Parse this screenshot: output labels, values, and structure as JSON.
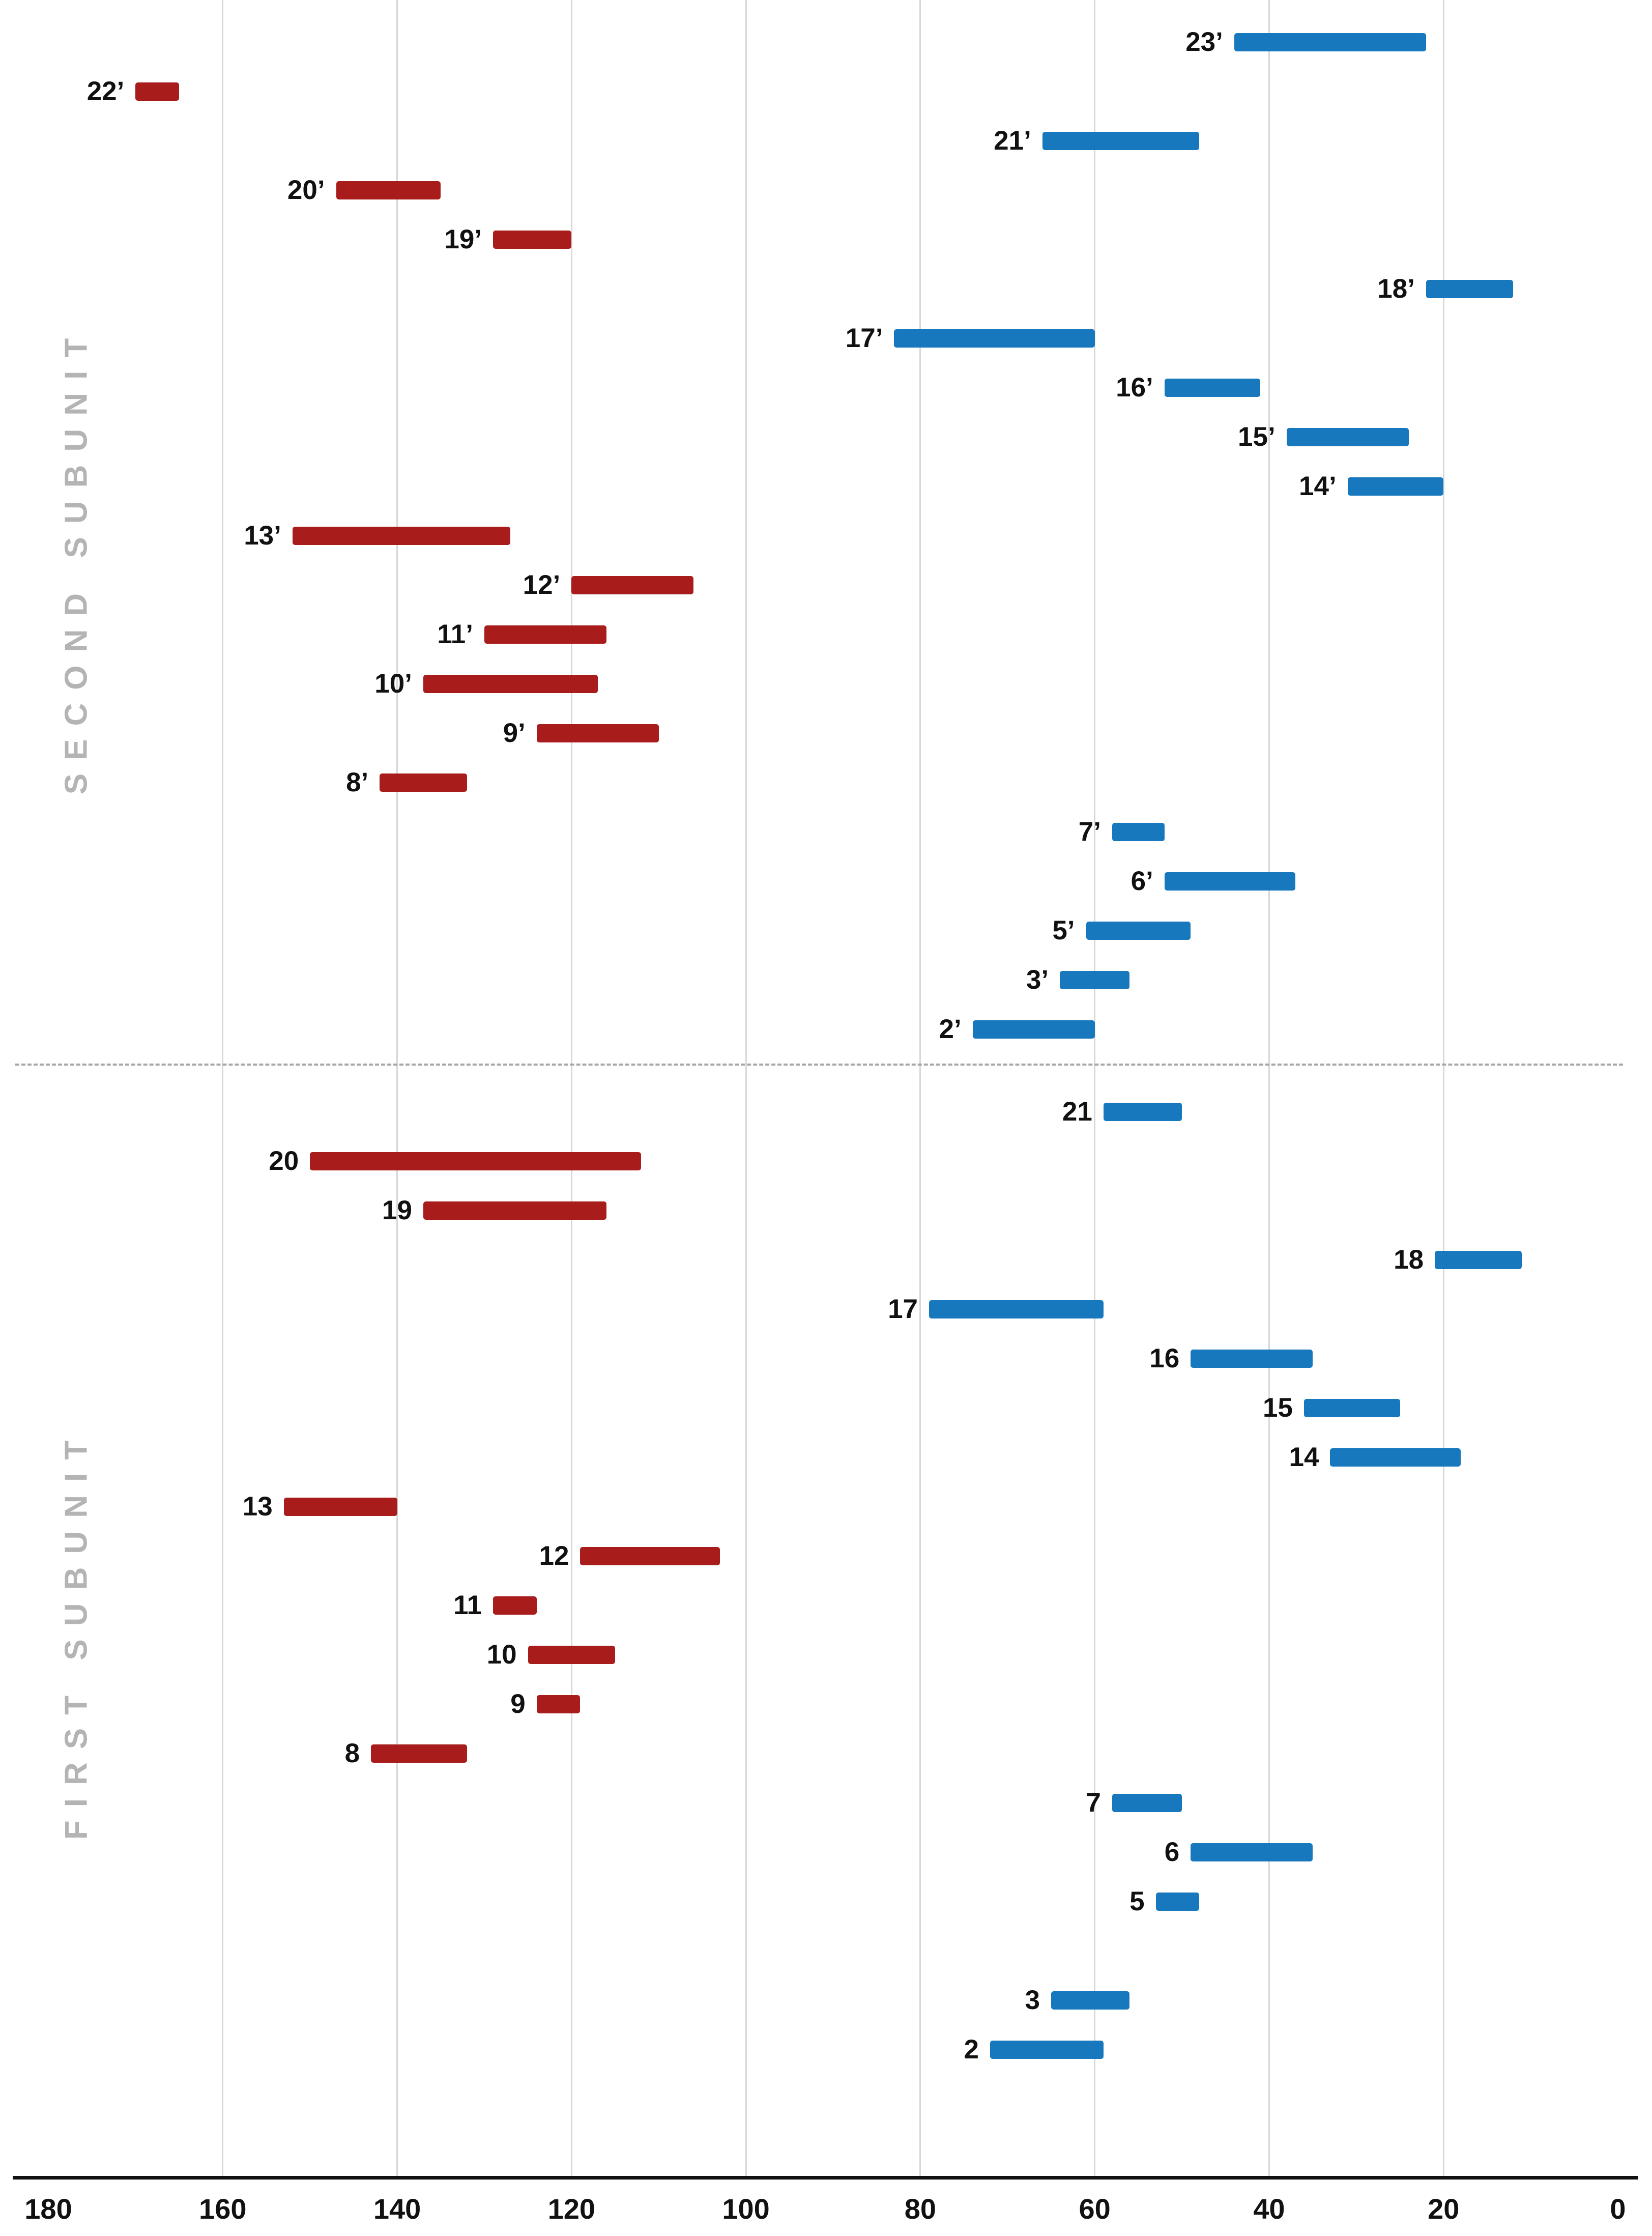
{
  "chart_data": {
    "type": "bar",
    "subtype": "horizontal-range-bars",
    "title": "",
    "xlabel": "",
    "ylabel": "",
    "x_axis": {
      "min": 0,
      "max": 180,
      "reversed": true,
      "ticks": [
        180,
        160,
        140,
        120,
        100,
        80,
        60,
        40,
        20,
        0
      ],
      "grid": true
    },
    "colors": {
      "red": "#a81c1c",
      "blue": "#1878bd",
      "grid": "#d8d8d8",
      "axis": "#111111",
      "divider": "#a6a6a6",
      "group_label": "#b4b4b4",
      "label_text": "#111111"
    },
    "groups": [
      {
        "name": "SECOND SUBUNIT",
        "items": [
          {
            "label": "23’",
            "start": 44,
            "end": 22,
            "color": "blue"
          },
          {
            "label": "22’",
            "start": 170,
            "end": 165,
            "color": "red"
          },
          {
            "label": "21’",
            "start": 66,
            "end": 48,
            "color": "blue"
          },
          {
            "label": "20’",
            "start": 147,
            "end": 135,
            "color": "red"
          },
          {
            "label": "19’",
            "start": 129,
            "end": 120,
            "color": "red"
          },
          {
            "label": "18’",
            "start": 22,
            "end": 12,
            "color": "blue"
          },
          {
            "label": "17’",
            "start": 83,
            "end": 60,
            "color": "blue"
          },
          {
            "label": "16’",
            "start": 52,
            "end": 41,
            "color": "blue"
          },
          {
            "label": "15’",
            "start": 38,
            "end": 24,
            "color": "blue"
          },
          {
            "label": "14’",
            "start": 31,
            "end": 20,
            "color": "blue"
          },
          {
            "label": "13’",
            "start": 152,
            "end": 127,
            "color": "red"
          },
          {
            "label": "12’",
            "start": 120,
            "end": 106,
            "color": "red"
          },
          {
            "label": "11’",
            "start": 130,
            "end": 116,
            "color": "red"
          },
          {
            "label": "10’",
            "start": 137,
            "end": 117,
            "color": "red"
          },
          {
            "label": "9’",
            "start": 124,
            "end": 110,
            "color": "red"
          },
          {
            "label": "8’",
            "start": 142,
            "end": 132,
            "color": "red"
          },
          {
            "label": "7’",
            "start": 58,
            "end": 52,
            "color": "blue"
          },
          {
            "label": "6’",
            "start": 52,
            "end": 37,
            "color": "blue"
          },
          {
            "label": "5’",
            "start": 61,
            "end": 49,
            "color": "blue"
          },
          {
            "label": "3’",
            "start": 64,
            "end": 56,
            "color": "blue"
          },
          {
            "label": "2’",
            "start": 74,
            "end": 60,
            "color": "blue"
          }
        ]
      },
      {
        "name": "FIRST SUBUNIT",
        "items": [
          {
            "label": "21",
            "start": 59,
            "end": 50,
            "color": "blue"
          },
          {
            "label": "20",
            "start": 150,
            "end": 112,
            "color": "red"
          },
          {
            "label": "19",
            "start": 137,
            "end": 116,
            "color": "red"
          },
          {
            "label": "18",
            "start": 21,
            "end": 11,
            "color": "blue"
          },
          {
            "label": "17",
            "start": 79,
            "end": 59,
            "color": "blue"
          },
          {
            "label": "16",
            "start": 49,
            "end": 35,
            "color": "blue"
          },
          {
            "label": "15",
            "start": 36,
            "end": 25,
            "color": "blue"
          },
          {
            "label": "14",
            "start": 33,
            "end": 18,
            "color": "blue"
          },
          {
            "label": "13",
            "start": 153,
            "end": 140,
            "color": "red"
          },
          {
            "label": "12",
            "start": 119,
            "end": 103,
            "color": "red"
          },
          {
            "label": "11",
            "start": 129,
            "end": 124,
            "color": "red"
          },
          {
            "label": "10",
            "start": 125,
            "end": 115,
            "color": "red"
          },
          {
            "label": "9",
            "start": 124,
            "end": 119,
            "color": "red"
          },
          {
            "label": "8",
            "start": 143,
            "end": 132,
            "color": "red"
          },
          {
            "label": "7",
            "start": 58,
            "end": 50,
            "color": "blue"
          },
          {
            "label": "6",
            "start": 49,
            "end": 35,
            "color": "blue"
          },
          {
            "label": "5",
            "start": 53,
            "end": 48,
            "color": "blue"
          },
          {
            "label": "3",
            "start": 65,
            "end": 56,
            "color": "blue",
            "gap_before": 1
          },
          {
            "label": "2",
            "start": 72,
            "end": 59,
            "color": "blue"
          }
        ]
      }
    ]
  }
}
